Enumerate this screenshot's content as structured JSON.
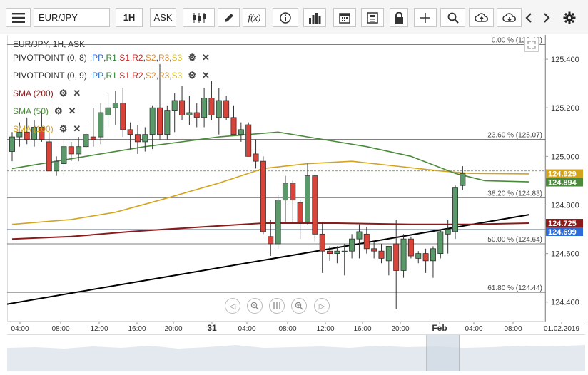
{
  "toolbar": {
    "symbol": "EUR/JPY",
    "timeframe": "1H",
    "price_type": "ASK"
  },
  "chart_title": "EUR/JPY, 1H, ASK",
  "indicators": [
    {
      "name": "PIVOTPOINT (0, 8)",
      "parts": [
        "PP",
        "R1",
        "S1",
        "R2",
        "S2",
        "R3",
        "S3"
      ]
    },
    {
      "name": "PIVOTPOINT (0, 9)",
      "parts": [
        "PP",
        "R1",
        "S1",
        "R2",
        "S2",
        "R3",
        "S3"
      ]
    },
    {
      "name": "SMA (200)",
      "color": "#8b1a1a"
    },
    {
      "name": "SMA (50)",
      "color": "#4a8a3a"
    },
    {
      "name": "SMA (100)",
      "color": "#d4a41c"
    }
  ],
  "colors": {
    "up": "#5a9a6a",
    "down": "#d9443a",
    "sma200": "#8b1a1a",
    "sma50": "#4a8a3a",
    "sma100": "#d4a41c",
    "trend": "#000000"
  },
  "chart_data": {
    "type": "candlestick",
    "symbol": "EUR/JPY",
    "ylim": [
      124.32,
      125.5
    ],
    "y_ticks": [
      "125.400",
      "125.200",
      "125.000",
      "124.800",
      "124.600",
      "124.400"
    ],
    "x_ticks": [
      "04:00",
      "08:00",
      "12:00",
      "16:00",
      "20:00",
      "31",
      "04:00",
      "08:00",
      "12:00",
      "16:00",
      "20:00",
      "Feb",
      "04:00",
      "08:00",
      "01.02.2019"
    ],
    "fib_levels": [
      {
        "label": "0.00 % (125.46)",
        "value": 125.46
      },
      {
        "label": "23.60 % (125.07)",
        "value": 125.07
      },
      {
        "label": "38.20 % (124.83)",
        "value": 124.83
      },
      {
        "label": "50.00 % (124.64)",
        "value": 124.64
      },
      {
        "label": "61.80 % (124.44)",
        "value": 124.44
      }
    ],
    "price_tags": [
      {
        "label": "124.929",
        "value": 124.929,
        "bg": "#d4a41c"
      },
      {
        "label": "124.894",
        "value": 124.894,
        "bg": "#4a8a3a"
      },
      {
        "label": "124.725",
        "value": 124.725,
        "bg": "#8b1a1a"
      },
      {
        "label": "124.699",
        "value": 124.699,
        "bg": "#2b6cd8"
      }
    ],
    "candles": [
      [
        125.02,
        125.1,
        124.98,
        125.08
      ],
      [
        125.08,
        125.14,
        125.04,
        125.1
      ],
      [
        125.1,
        125.16,
        125.05,
        125.07
      ],
      [
        125.07,
        125.15,
        125.04,
        125.12
      ],
      [
        125.12,
        125.19,
        125.06,
        125.07
      ],
      [
        125.06,
        125.1,
        124.94,
        124.94
      ],
      [
        124.94,
        125.0,
        124.92,
        124.98
      ],
      [
        124.97,
        125.07,
        124.92,
        125.04
      ],
      [
        125.04,
        125.06,
        124.98,
        125.01
      ],
      [
        125.01,
        125.08,
        124.98,
        125.04
      ],
      [
        125.04,
        125.15,
        124.99,
        125.09
      ],
      [
        125.08,
        125.2,
        125.04,
        125.07
      ],
      [
        125.08,
        125.22,
        125.05,
        125.18
      ],
      [
        125.17,
        125.26,
        125.12,
        125.2
      ],
      [
        125.2,
        125.27,
        125.13,
        125.22
      ],
      [
        125.22,
        125.28,
        125.08,
        125.11
      ],
      [
        125.11,
        125.14,
        125.03,
        125.09
      ],
      [
        125.09,
        125.13,
        125.01,
        125.06
      ],
      [
        125.06,
        125.12,
        125.02,
        125.09
      ],
      [
        125.09,
        125.21,
        125.03,
        125.2
      ],
      [
        125.2,
        125.38,
        125.07,
        125.09
      ],
      [
        125.09,
        125.21,
        125.07,
        125.19
      ],
      [
        125.19,
        125.26,
        125.1,
        125.23
      ],
      [
        125.23,
        125.29,
        125.15,
        125.17
      ],
      [
        125.17,
        125.25,
        125.13,
        125.18
      ],
      [
        125.18,
        125.22,
        125.12,
        125.16
      ],
      [
        125.16,
        125.28,
        125.12,
        125.24
      ],
      [
        125.24,
        125.31,
        125.15,
        125.17
      ],
      [
        125.16,
        125.28,
        125.09,
        125.23
      ],
      [
        125.23,
        125.25,
        125.15,
        125.16
      ],
      [
        125.16,
        125.21,
        125.09,
        125.09
      ],
      [
        125.09,
        125.14,
        125.06,
        125.11
      ],
      [
        125.13,
        125.14,
        125.0,
        125.0
      ],
      [
        125.01,
        125.07,
        124.95,
        124.98
      ],
      [
        124.98,
        125.0,
        124.68,
        124.69
      ],
      [
        124.67,
        124.74,
        124.59,
        124.64
      ],
      [
        124.64,
        124.84,
        124.62,
        124.82
      ],
      [
        124.82,
        124.92,
        124.73,
        124.89
      ],
      [
        124.89,
        124.9,
        124.73,
        124.82
      ],
      [
        124.81,
        124.82,
        124.66,
        124.73
      ],
      [
        124.73,
        124.97,
        124.72,
        124.92
      ],
      [
        124.92,
        124.92,
        124.65,
        124.68
      ],
      [
        124.68,
        124.73,
        124.52,
        124.61
      ],
      [
        124.61,
        124.63,
        124.57,
        124.6
      ],
      [
        124.6,
        124.63,
        124.56,
        124.61
      ],
      [
        124.61,
        124.64,
        124.51,
        124.61
      ],
      [
        124.61,
        124.68,
        124.58,
        124.66
      ],
      [
        124.66,
        124.72,
        124.58,
        124.69
      ],
      [
        124.68,
        124.71,
        124.6,
        124.62
      ],
      [
        124.62,
        124.65,
        124.58,
        124.61
      ],
      [
        124.61,
        124.64,
        124.56,
        124.58
      ],
      [
        124.57,
        124.63,
        124.51,
        124.63
      ],
      [
        124.64,
        124.74,
        124.37,
        124.53
      ],
      [
        124.53,
        124.68,
        124.5,
        124.66
      ],
      [
        124.66,
        124.67,
        124.58,
        124.59
      ],
      [
        124.58,
        124.61,
        124.56,
        124.6
      ],
      [
        124.6,
        124.62,
        124.52,
        124.57
      ],
      [
        124.57,
        124.63,
        124.5,
        124.62
      ],
      [
        124.6,
        124.7,
        124.58,
        124.69
      ],
      [
        124.68,
        124.74,
        124.6,
        124.7
      ],
      [
        124.69,
        124.88,
        124.66,
        124.87
      ],
      [
        124.88,
        124.96,
        124.86,
        124.93
      ]
    ],
    "sma50": [
      [
        0,
        124.95
      ],
      [
        8,
        124.99
      ],
      [
        18,
        125.04
      ],
      [
        28,
        125.08
      ],
      [
        36,
        125.1
      ],
      [
        42,
        125.07
      ],
      [
        48,
        125.04
      ],
      [
        54,
        125.0
      ],
      [
        60,
        124.93
      ],
      [
        64,
        124.9
      ],
      [
        70,
        124.895
      ]
    ],
    "sma100": [
      [
        0,
        124.72
      ],
      [
        8,
        124.74
      ],
      [
        14,
        124.77
      ],
      [
        20,
        124.82
      ],
      [
        28,
        124.89
      ],
      [
        34,
        124.95
      ],
      [
        40,
        124.97
      ],
      [
        46,
        124.98
      ],
      [
        52,
        124.96
      ],
      [
        58,
        124.94
      ],
      [
        62,
        124.93
      ],
      [
        70,
        124.928
      ]
    ],
    "sma200": [
      [
        0,
        124.66
      ],
      [
        8,
        124.67
      ],
      [
        16,
        124.69
      ],
      [
        26,
        124.71
      ],
      [
        34,
        124.725
      ],
      [
        44,
        124.725
      ],
      [
        54,
        124.72
      ],
      [
        62,
        124.72
      ],
      [
        70,
        124.725
      ]
    ],
    "trendline": [
      [
        -1,
        124.39
      ],
      [
        70,
        124.76
      ]
    ],
    "pivot_line_value": 124.699,
    "dashed_line_value": 124.94
  }
}
